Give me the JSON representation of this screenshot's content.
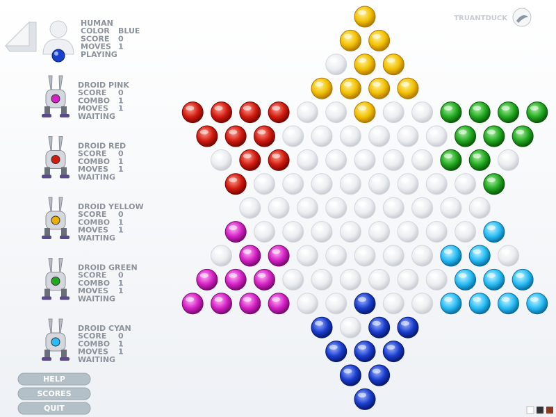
{
  "header": {
    "brand": "TRUANTDUCK"
  },
  "players": [
    {
      "name": "HUMAN",
      "stats": [
        {
          "label": "COLOR",
          "value": "BLUE"
        },
        {
          "label": "SCORE",
          "value": 0
        },
        {
          "label": "MOVES",
          "value": 1
        }
      ],
      "status": "PLAYING"
    },
    {
      "name": "DROID PINK",
      "stats": [
        {
          "label": "SCORE",
          "value": 0
        },
        {
          "label": "COMBO",
          "value": 1
        },
        {
          "label": "MOVES",
          "value": 1
        }
      ],
      "status": "WAITING"
    },
    {
      "name": "DROID RED",
      "stats": [
        {
          "label": "SCORE",
          "value": 0
        },
        {
          "label": "COMBO",
          "value": 1
        },
        {
          "label": "MOVES",
          "value": 1
        }
      ],
      "status": "WAITING"
    },
    {
      "name": "DROID YELLOW",
      "stats": [
        {
          "label": "SCORE",
          "value": 0
        },
        {
          "label": "COMBO",
          "value": 1
        },
        {
          "label": "MOVES",
          "value": 1
        }
      ],
      "status": "WAITING"
    },
    {
      "name": "DROID GREEN",
      "stats": [
        {
          "label": "SCORE",
          "value": 0
        },
        {
          "label": "COMBO",
          "value": 1
        },
        {
          "label": "MOVES",
          "value": 1
        }
      ],
      "status": "WAITING"
    },
    {
      "name": "DROID CYAN",
      "stats": [
        {
          "label": "SCORE",
          "value": 0
        },
        {
          "label": "COMBO",
          "value": 1
        },
        {
          "label": "MOVES",
          "value": 1
        }
      ],
      "status": "WAITING"
    }
  ],
  "buttons": [
    "HELP",
    "SCORES",
    "QUIT"
  ]
}
